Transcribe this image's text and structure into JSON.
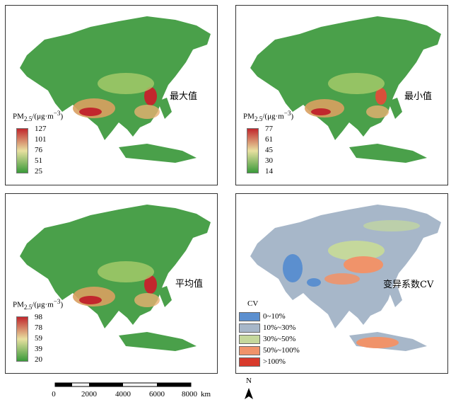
{
  "panels": [
    {
      "title": "最大值",
      "legend": {
        "title_html": "PM<sub>2.5</sub>/(μg·m<sup>−3</sup>)",
        "ticks": [
          "127",
          "101",
          "76",
          "51",
          "25"
        ]
      }
    },
    {
      "title": "最小值",
      "legend": {
        "title_html": "PM<sub>2.5</sub>/(μg·m<sup>−3</sup>)",
        "ticks": [
          "77",
          "61",
          "45",
          "30",
          "14"
        ]
      }
    },
    {
      "title": "平均值",
      "legend": {
        "title_html": "PM<sub>2.5</sub>/(μg·m<sup>−3</sup>)",
        "ticks": [
          "98",
          "78",
          "59",
          "39",
          "20"
        ]
      }
    },
    {
      "title": "变异系数CV",
      "legend": {
        "title": "CV",
        "classes": [
          {
            "label": "0~10%",
            "color": "#5b8fcf"
          },
          {
            "label": "10%~30%",
            "color": "#a7b7c9"
          },
          {
            "label": "30%~50%",
            "color": "#c5d89c"
          },
          {
            "label": "50%~100%",
            "color": "#f0936a"
          },
          {
            "label": ">100%",
            "color": "#d83a2c"
          }
        ]
      }
    }
  ],
  "colors": {
    "ramp_high": "#c1272d",
    "ramp_mid": "#e8e0a0",
    "ramp_low": "#3a9a3a"
  },
  "scalebar": {
    "ticks": [
      "0",
      "2000",
      "4000",
      "6000",
      "8000"
    ],
    "unit": "km"
  },
  "north_label": "N"
}
